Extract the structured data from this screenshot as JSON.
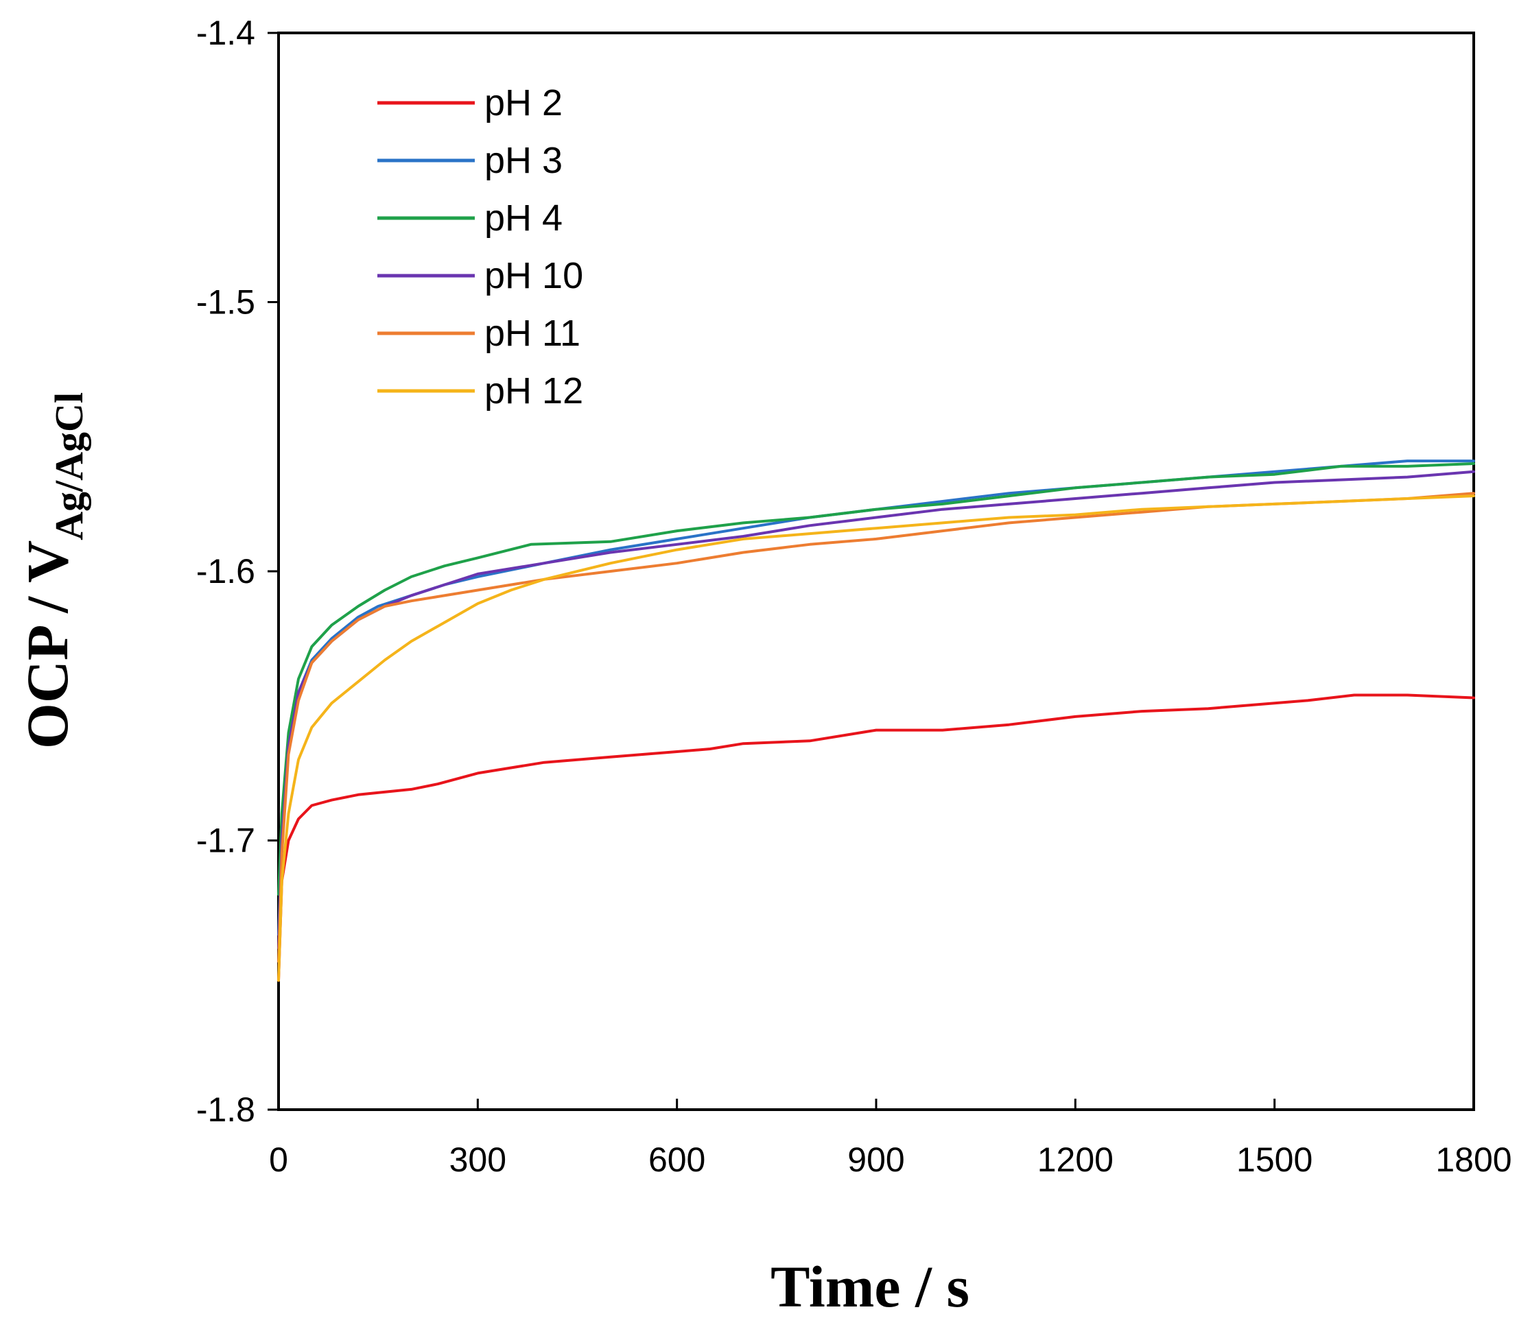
{
  "chart_data": {
    "type": "line",
    "title": "",
    "xlabel": "Time  / s",
    "ylabel": {
      "main": "OCP / V",
      "subscript": "Ag/AgCl"
    },
    "xlim": [
      0,
      1800
    ],
    "ylim": [
      -1.8,
      -1.4
    ],
    "xticks": [
      0,
      300,
      600,
      900,
      1200,
      1500,
      1800
    ],
    "xtick_labels": [
      "0",
      "300",
      "600",
      "900",
      "1200",
      "1500",
      "1800"
    ],
    "yticks": [
      -1.4,
      -1.5,
      -1.6,
      -1.7,
      -1.8
    ],
    "ytick_labels": [
      "-1.4",
      "-1.5",
      "-1.6",
      "-1.7",
      "-1.8"
    ],
    "grid": false,
    "legend_position": "top-left",
    "series": [
      {
        "name": "pH 2",
        "color": "#e8141b",
        "points": [
          [
            0,
            -1.752
          ],
          [
            5,
            -1.715
          ],
          [
            15,
            -1.7
          ],
          [
            30,
            -1.692
          ],
          [
            50,
            -1.687
          ],
          [
            80,
            -1.685
          ],
          [
            120,
            -1.683
          ],
          [
            200,
            -1.681
          ],
          [
            240,
            -1.679
          ],
          [
            300,
            -1.675
          ],
          [
            400,
            -1.671
          ],
          [
            500,
            -1.669
          ],
          [
            600,
            -1.667
          ],
          [
            650,
            -1.666
          ],
          [
            700,
            -1.664
          ],
          [
            800,
            -1.663
          ],
          [
            900,
            -1.659
          ],
          [
            1000,
            -1.659
          ],
          [
            1100,
            -1.657
          ],
          [
            1200,
            -1.654
          ],
          [
            1300,
            -1.652
          ],
          [
            1400,
            -1.651
          ],
          [
            1500,
            -1.649
          ],
          [
            1550,
            -1.648
          ],
          [
            1620,
            -1.646
          ],
          [
            1700,
            -1.646
          ],
          [
            1800,
            -1.647
          ]
        ]
      },
      {
        "name": "pH 3",
        "color": "#2a73c7",
        "points": [
          [
            0,
            -1.735
          ],
          [
            5,
            -1.7
          ],
          [
            15,
            -1.665
          ],
          [
            30,
            -1.645
          ],
          [
            50,
            -1.633
          ],
          [
            80,
            -1.625
          ],
          [
            120,
            -1.617
          ],
          [
            150,
            -1.613
          ],
          [
            200,
            -1.609
          ],
          [
            250,
            -1.605
          ],
          [
            300,
            -1.602
          ],
          [
            400,
            -1.597
          ],
          [
            500,
            -1.592
          ],
          [
            600,
            -1.588
          ],
          [
            700,
            -1.584
          ],
          [
            800,
            -1.58
          ],
          [
            900,
            -1.577
          ],
          [
            1000,
            -1.574
          ],
          [
            1100,
            -1.571
          ],
          [
            1200,
            -1.569
          ],
          [
            1300,
            -1.567
          ],
          [
            1400,
            -1.565
          ],
          [
            1500,
            -1.563
          ],
          [
            1600,
            -1.561
          ],
          [
            1700,
            -1.559
          ],
          [
            1800,
            -1.559
          ]
        ]
      },
      {
        "name": "pH 4",
        "color": "#1fa14a",
        "points": [
          [
            0,
            -1.72
          ],
          [
            5,
            -1.69
          ],
          [
            15,
            -1.66
          ],
          [
            30,
            -1.64
          ],
          [
            50,
            -1.628
          ],
          [
            80,
            -1.62
          ],
          [
            120,
            -1.613
          ],
          [
            160,
            -1.607
          ],
          [
            200,
            -1.602
          ],
          [
            250,
            -1.598
          ],
          [
            300,
            -1.595
          ],
          [
            380,
            -1.59
          ],
          [
            500,
            -1.589
          ],
          [
            600,
            -1.585
          ],
          [
            700,
            -1.582
          ],
          [
            800,
            -1.58
          ],
          [
            900,
            -1.577
          ],
          [
            1000,
            -1.575
          ],
          [
            1100,
            -1.572
          ],
          [
            1200,
            -1.569
          ],
          [
            1300,
            -1.567
          ],
          [
            1400,
            -1.565
          ],
          [
            1500,
            -1.564
          ],
          [
            1600,
            -1.561
          ],
          [
            1700,
            -1.561
          ],
          [
            1800,
            -1.56
          ]
        ]
      },
      {
        "name": "pH 10",
        "color": "#6a35b0",
        "points": [
          [
            0,
            -1.74
          ],
          [
            5,
            -1.7
          ],
          [
            15,
            -1.665
          ],
          [
            30,
            -1.645
          ],
          [
            50,
            -1.634
          ],
          [
            80,
            -1.626
          ],
          [
            120,
            -1.618
          ],
          [
            160,
            -1.613
          ],
          [
            200,
            -1.609
          ],
          [
            250,
            -1.605
          ],
          [
            300,
            -1.601
          ],
          [
            400,
            -1.597
          ],
          [
            500,
            -1.593
          ],
          [
            600,
            -1.59
          ],
          [
            700,
            -1.587
          ],
          [
            800,
            -1.583
          ],
          [
            900,
            -1.58
          ],
          [
            1000,
            -1.577
          ],
          [
            1100,
            -1.575
          ],
          [
            1200,
            -1.573
          ],
          [
            1300,
            -1.571
          ],
          [
            1400,
            -1.569
          ],
          [
            1500,
            -1.567
          ],
          [
            1600,
            -1.566
          ],
          [
            1700,
            -1.565
          ],
          [
            1800,
            -1.563
          ]
        ]
      },
      {
        "name": "pH 11",
        "color": "#ed7d31",
        "points": [
          [
            0,
            -1.745
          ],
          [
            5,
            -1.705
          ],
          [
            15,
            -1.668
          ],
          [
            30,
            -1.648
          ],
          [
            50,
            -1.634
          ],
          [
            80,
            -1.626
          ],
          [
            120,
            -1.618
          ],
          [
            160,
            -1.613
          ],
          [
            200,
            -1.611
          ],
          [
            300,
            -1.607
          ],
          [
            400,
            -1.603
          ],
          [
            500,
            -1.6
          ],
          [
            600,
            -1.597
          ],
          [
            700,
            -1.593
          ],
          [
            800,
            -1.59
          ],
          [
            900,
            -1.588
          ],
          [
            1000,
            -1.585
          ],
          [
            1100,
            -1.582
          ],
          [
            1200,
            -1.58
          ],
          [
            1300,
            -1.578
          ],
          [
            1400,
            -1.576
          ],
          [
            1500,
            -1.575
          ],
          [
            1600,
            -1.574
          ],
          [
            1700,
            -1.573
          ],
          [
            1800,
            -1.571
          ]
        ]
      },
      {
        "name": "pH 12",
        "color": "#f5b41a",
        "points": [
          [
            0,
            -1.752
          ],
          [
            5,
            -1.715
          ],
          [
            15,
            -1.69
          ],
          [
            30,
            -1.67
          ],
          [
            50,
            -1.658
          ],
          [
            80,
            -1.649
          ],
          [
            120,
            -1.641
          ],
          [
            160,
            -1.633
          ],
          [
            200,
            -1.626
          ],
          [
            250,
            -1.619
          ],
          [
            300,
            -1.612
          ],
          [
            350,
            -1.607
          ],
          [
            400,
            -1.603
          ],
          [
            500,
            -1.597
          ],
          [
            600,
            -1.592
          ],
          [
            700,
            -1.588
          ],
          [
            800,
            -1.586
          ],
          [
            900,
            -1.584
          ],
          [
            1000,
            -1.582
          ],
          [
            1100,
            -1.58
          ],
          [
            1200,
            -1.579
          ],
          [
            1300,
            -1.577
          ],
          [
            1400,
            -1.576
          ],
          [
            1500,
            -1.575
          ],
          [
            1600,
            -1.574
          ],
          [
            1700,
            -1.573
          ],
          [
            1800,
            -1.572
          ]
        ]
      }
    ]
  }
}
